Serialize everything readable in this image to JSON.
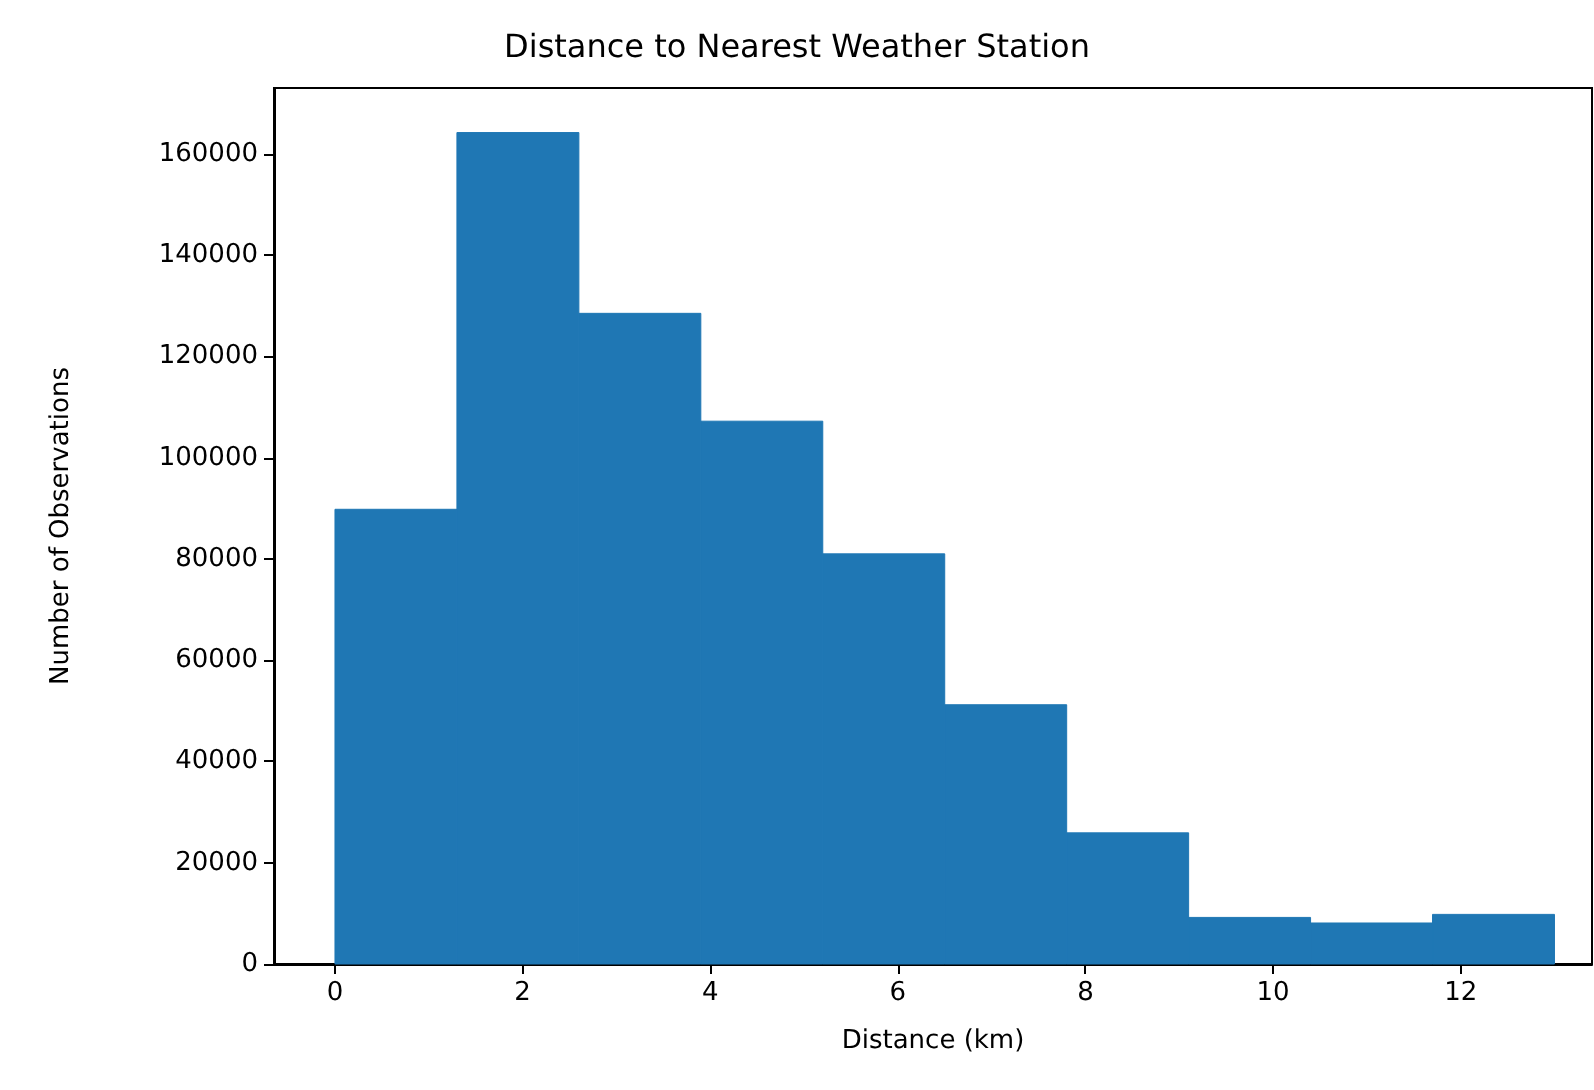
{
  "chart_data": {
    "type": "histogram",
    "title": "Distance to Nearest Weather Station",
    "xlabel": "Distance (km)",
    "ylabel": "Number of Observations",
    "bins": [
      0,
      1.3,
      2.6,
      3.9,
      5.2,
      6.5,
      7.8,
      9.1,
      10.4,
      11.7,
      13.0
    ],
    "values": [
      89800,
      164200,
      128500,
      107200,
      81000,
      51200,
      25900,
      9200,
      8100,
      9800
    ],
    "color": "#1f77b4",
    "xlim": [
      -0.65,
      13.4
    ],
    "xticks": [
      0,
      2,
      4,
      6,
      8,
      10,
      12
    ],
    "ylim": [
      0,
      173000
    ],
    "yticks": [
      0,
      20000,
      40000,
      60000,
      80000,
      100000,
      120000,
      140000,
      160000
    ],
    "grid": false
  }
}
